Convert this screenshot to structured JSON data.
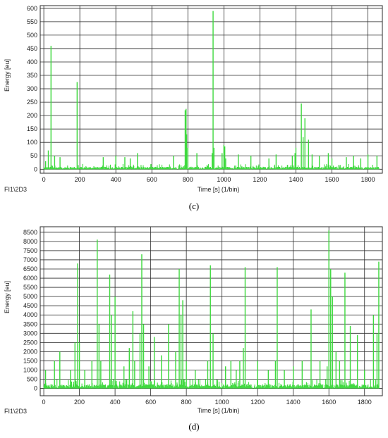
{
  "chart_data": [
    {
      "type": "bar",
      "caption": "(c)",
      "xlabel": "Time [s] (1/bin)",
      "ylabel": "Energy [eu]",
      "channel_label": "FI1\\2D3",
      "xlim": [
        -20,
        1880
      ],
      "ylim": [
        -15,
        610
      ],
      "x_ticks": [
        0,
        200,
        400,
        600,
        800,
        1000,
        1200,
        1400,
        1600,
        1800
      ],
      "y_ticks": [
        0,
        50,
        100,
        150,
        200,
        250,
        300,
        350,
        400,
        450,
        500,
        550,
        600
      ],
      "grid": true,
      "bar_color": "#3ed93e",
      "baseline_max": 20,
      "x_start": 0,
      "x_end": 1865,
      "series": [
        {
          "x": [
            10,
            25,
            40,
            60,
            90,
            185,
            330,
            400,
            450,
            480,
            520,
            720,
            785,
            790,
            793,
            800,
            850,
            935,
            940,
            945,
            990,
            1000,
            1005,
            1010,
            1080,
            1150,
            1250,
            1290,
            1380,
            1395,
            1400,
            1430,
            1440,
            1450,
            1470,
            1490,
            1530,
            1580,
            1600,
            1680,
            1720,
            1760,
            1800,
            1850
          ],
          "values": [
            30,
            70,
            460,
            50,
            45,
            325,
            45,
            50,
            45,
            40,
            60,
            50,
            220,
            225,
            130,
            80,
            60,
            60,
            590,
            80,
            60,
            90,
            85,
            40,
            55,
            50,
            40,
            55,
            50,
            60,
            80,
            245,
            120,
            190,
            110,
            55,
            50,
            60,
            40,
            45,
            50,
            40,
            55,
            50
          ]
        }
      ]
    },
    {
      "type": "bar",
      "caption": "(d)",
      "xlabel": "Time [s] (1/bin)",
      "ylabel": "Energy [eu]",
      "channel_label": "FI1\\2D3",
      "xlim": [
        -20,
        1900
      ],
      "ylim": [
        -400,
        8800
      ],
      "x_ticks": [
        0,
        200,
        400,
        600,
        800,
        1000,
        1200,
        1400,
        1600,
        1800
      ],
      "y_ticks": [
        0,
        500,
        1000,
        1500,
        2000,
        2500,
        3000,
        3500,
        4000,
        4500,
        5000,
        5500,
        6000,
        6500,
        7000,
        7500,
        8000,
        8500
      ],
      "grid": true,
      "bar_color": "#3ed93e",
      "baseline_max": 500,
      "x_start": 0,
      "x_end": 1880,
      "series": [
        {
          "x": [
            10,
            60,
            90,
            150,
            175,
            190,
            200,
            230,
            270,
            300,
            310,
            320,
            370,
            380,
            400,
            450,
            480,
            500,
            510,
            540,
            550,
            560,
            590,
            620,
            660,
            700,
            740,
            760,
            770,
            780,
            800,
            850,
            920,
            935,
            950,
            1020,
            1050,
            1080,
            1100,
            1120,
            1130,
            1200,
            1260,
            1300,
            1310,
            1350,
            1400,
            1450,
            1500,
            1550,
            1590,
            1600,
            1610,
            1620,
            1640,
            1660,
            1690,
            1720,
            1760,
            1800,
            1850,
            1870,
            1880
          ],
          "values": [
            1000,
            1500,
            2000,
            1000,
            2500,
            6800,
            2500,
            1000,
            1500,
            8100,
            3500,
            1500,
            6200,
            4000,
            5000,
            1200,
            2200,
            4200,
            1500,
            3000,
            7300,
            3500,
            1200,
            2800,
            1800,
            3500,
            2000,
            6500,
            4000,
            4800,
            1500,
            1000,
            1500,
            6700,
            3000,
            1200,
            1500,
            1000,
            1500,
            2200,
            6600,
            1500,
            1000,
            1500,
            6600,
            1000,
            1200,
            1500,
            4300,
            1500,
            1200,
            8600,
            6500,
            5000,
            2000,
            1500,
            6300,
            3400,
            2900,
            1000,
            4000,
            3000,
            6900
          ]
        }
      ]
    }
  ]
}
